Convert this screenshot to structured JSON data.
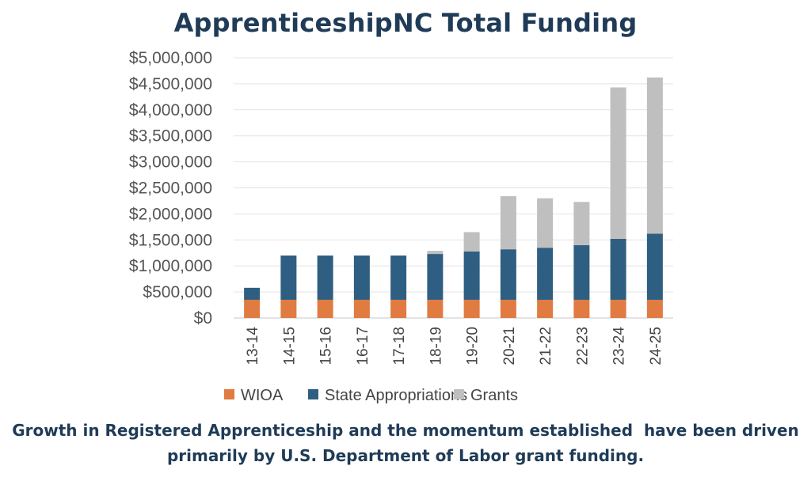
{
  "chart_data": {
    "type": "bar",
    "stacked": true,
    "title": "ApprenticeshipNC Total Funding",
    "categories": [
      "13-14",
      "14-15",
      "15-16",
      "16-17",
      "17-18",
      "18-19",
      "19-20",
      "20-21",
      "21-22",
      "22-23",
      "23-24",
      "24-25"
    ],
    "series": [
      {
        "name": "WIOA",
        "color": "#e07b42",
        "values": [
          350000,
          350000,
          350000,
          350000,
          350000,
          350000,
          350000,
          350000,
          350000,
          350000,
          350000,
          350000
        ]
      },
      {
        "name": "State Appropriations",
        "color": "#2e5f82",
        "values": [
          230000,
          850000,
          850000,
          850000,
          850000,
          880000,
          930000,
          970000,
          1000000,
          1050000,
          1170000,
          1270000
        ]
      },
      {
        "name": "Grants",
        "color": "#bfbfbf",
        "values": [
          0,
          0,
          0,
          0,
          0,
          60000,
          370000,
          1020000,
          950000,
          830000,
          2910000,
          3000000
        ]
      }
    ],
    "ylim": [
      0,
      5000000
    ],
    "yticks": [
      "$0",
      "$500,000",
      "$1,000,000",
      "$1,500,000",
      "$2,000,000",
      "$2,500,000",
      "$3,000,000",
      "$3,500,000",
      "$4,000,000",
      "$4,500,000",
      "$5,000,000"
    ],
    "xlabel": "",
    "ylabel": "",
    "grid": true,
    "legend_position": "bottom"
  },
  "caption": {
    "line1": "Growth in Registered Apprenticeship and the momentum established  have been driven",
    "line2": "primarily by U.S. Department of Labor grant funding."
  }
}
